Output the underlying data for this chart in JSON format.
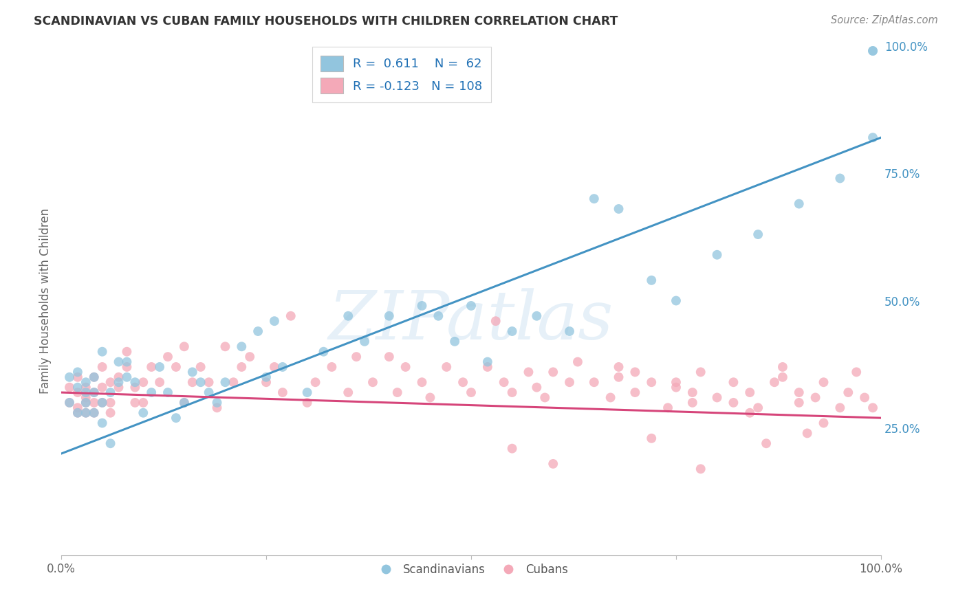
{
  "title": "SCANDINAVIAN VS CUBAN FAMILY HOUSEHOLDS WITH CHILDREN CORRELATION CHART",
  "source": "Source: ZipAtlas.com",
  "ylabel": "Family Households with Children",
  "watermark": "ZIPatlas",
  "xlim": [
    0,
    100
  ],
  "ylim": [
    0,
    100
  ],
  "xtick_positions": [
    0,
    25,
    50,
    75,
    100
  ],
  "xticklabels": [
    "0.0%",
    "",
    "",
    "",
    "100.0%"
  ],
  "ytick_positions": [
    25,
    50,
    75,
    100
  ],
  "yticklabels_right": [
    "25.0%",
    "50.0%",
    "75.0%",
    "100.0%"
  ],
  "scandinavian_color": "#92c5de",
  "cuban_color": "#f4a9b8",
  "trend_blue": "#4393c3",
  "trend_pink": "#d6457a",
  "R_scand": 0.611,
  "N_scand": 62,
  "R_cuban": -0.123,
  "N_cuban": 108,
  "scand_line_x": [
    0,
    100
  ],
  "scand_line_y": [
    20,
    82
  ],
  "cuban_line_x": [
    0,
    100
  ],
  "cuban_line_y": [
    32,
    27
  ],
  "scand_x": [
    1,
    1,
    2,
    2,
    2,
    3,
    3,
    3,
    3,
    4,
    4,
    4,
    5,
    5,
    5,
    6,
    6,
    7,
    7,
    8,
    8,
    9,
    10,
    11,
    12,
    13,
    14,
    15,
    16,
    17,
    18,
    19,
    20,
    22,
    24,
    25,
    26,
    27,
    30,
    32,
    35,
    37,
    40,
    44,
    46,
    48,
    50,
    52,
    55,
    58,
    62,
    65,
    68,
    72,
    75,
    80,
    85,
    90,
    95,
    99,
    99,
    99
  ],
  "scand_y": [
    30,
    35,
    28,
    33,
    36,
    30,
    34,
    28,
    32,
    32,
    28,
    35,
    30,
    26,
    40,
    22,
    32,
    38,
    34,
    38,
    35,
    34,
    28,
    32,
    37,
    32,
    27,
    30,
    36,
    34,
    32,
    30,
    34,
    41,
    44,
    35,
    46,
    37,
    32,
    40,
    47,
    42,
    47,
    49,
    47,
    42,
    49,
    38,
    44,
    47,
    44,
    70,
    68,
    54,
    50,
    59,
    63,
    69,
    74,
    82,
    99,
    99
  ],
  "cuban_x": [
    1,
    1,
    2,
    2,
    2,
    2,
    3,
    3,
    3,
    3,
    4,
    4,
    4,
    4,
    5,
    5,
    5,
    6,
    6,
    6,
    7,
    7,
    8,
    8,
    9,
    9,
    10,
    10,
    11,
    12,
    13,
    14,
    15,
    15,
    16,
    17,
    18,
    19,
    20,
    21,
    22,
    23,
    25,
    26,
    27,
    28,
    30,
    31,
    33,
    35,
    36,
    38,
    40,
    41,
    42,
    44,
    45,
    47,
    49,
    50,
    52,
    54,
    55,
    57,
    59,
    60,
    62,
    65,
    67,
    68,
    70,
    72,
    74,
    75,
    77,
    78,
    80,
    82,
    84,
    85,
    87,
    88,
    90,
    92,
    93,
    95,
    96,
    97,
    98,
    99,
    63,
    68,
    75,
    82,
    88,
    53,
    58,
    70,
    77,
    84,
    90,
    93,
    55,
    60,
    72,
    78,
    86,
    91
  ],
  "cuban_y": [
    30,
    33,
    28,
    32,
    35,
    29,
    28,
    31,
    33,
    30,
    32,
    30,
    35,
    28,
    37,
    33,
    30,
    34,
    30,
    28,
    33,
    35,
    40,
    37,
    33,
    30,
    34,
    30,
    37,
    34,
    39,
    37,
    41,
    30,
    34,
    37,
    34,
    29,
    41,
    34,
    37,
    39,
    34,
    37,
    32,
    47,
    30,
    34,
    37,
    32,
    39,
    34,
    39,
    32,
    37,
    34,
    31,
    37,
    34,
    32,
    37,
    34,
    32,
    36,
    31,
    36,
    34,
    34,
    31,
    37,
    32,
    34,
    29,
    34,
    32,
    36,
    31,
    34,
    32,
    29,
    34,
    37,
    32,
    31,
    34,
    29,
    32,
    36,
    31,
    29,
    38,
    35,
    33,
    30,
    35,
    46,
    33,
    36,
    30,
    28,
    30,
    26,
    21,
    18,
    23,
    17,
    22,
    24
  ]
}
